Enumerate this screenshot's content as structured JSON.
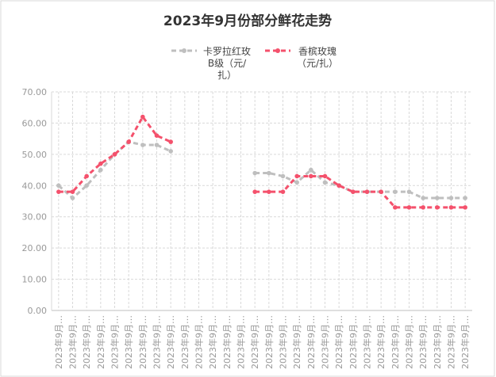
{
  "chart_data": {
    "type": "line",
    "title": "2023年9月份部分鲜花走势",
    "categories": [
      "2023年9月…",
      "2023年9月…",
      "2023年9月…",
      "2023年9月…",
      "2023年9月…",
      "2023年9月…",
      "2023年9月…",
      "2023年9月…",
      "2023年9月…",
      "2023年9月…",
      "2023年9月…",
      "2023年9月…",
      "2023年9月…",
      "2023年9月…",
      "2023年9月…",
      "2023年9月…",
      "2023年9月…",
      "2023年9月…",
      "2023年9月…",
      "2023年9月…",
      "2023年9月…",
      "2023年9月…",
      "2023年9月…",
      "2023年9月…",
      "2023年9月…",
      "2023年9月…",
      "2023年9月…",
      "2023年9月…",
      "2023年9月…",
      "2023年9月…"
    ],
    "series": [
      {
        "name": "卡罗拉红玫B级（元/扎）",
        "color": "#bfbfbf",
        "values": [
          40,
          36,
          40,
          45,
          50,
          54,
          53,
          53,
          51,
          null,
          null,
          null,
          null,
          null,
          44,
          44,
          43,
          41,
          45,
          41,
          40,
          38,
          38,
          38,
          38,
          38,
          36,
          36,
          36,
          36
        ]
      },
      {
        "name": "香槟玫瑰（元/扎）",
        "color": "#f4516c",
        "values": [
          38,
          38,
          43,
          47,
          50,
          54,
          62,
          56,
          54,
          null,
          null,
          null,
          null,
          null,
          38,
          38,
          38,
          43,
          43,
          43,
          40,
          38,
          38,
          38,
          33,
          33,
          33,
          33,
          33,
          33
        ]
      }
    ],
    "ylim": [
      0,
      70
    ],
    "yticks": [
      {
        "value": 0,
        "label": "0.00"
      },
      {
        "value": 10,
        "label": "10.00"
      },
      {
        "value": 20,
        "label": "20.00"
      },
      {
        "value": 30,
        "label": "30.00"
      },
      {
        "value": 40,
        "label": "40.00"
      },
      {
        "value": 50,
        "label": "50.00"
      },
      {
        "value": 60,
        "label": "60.00"
      },
      {
        "value": 70,
        "label": "70.00"
      }
    ],
    "grid": true
  }
}
